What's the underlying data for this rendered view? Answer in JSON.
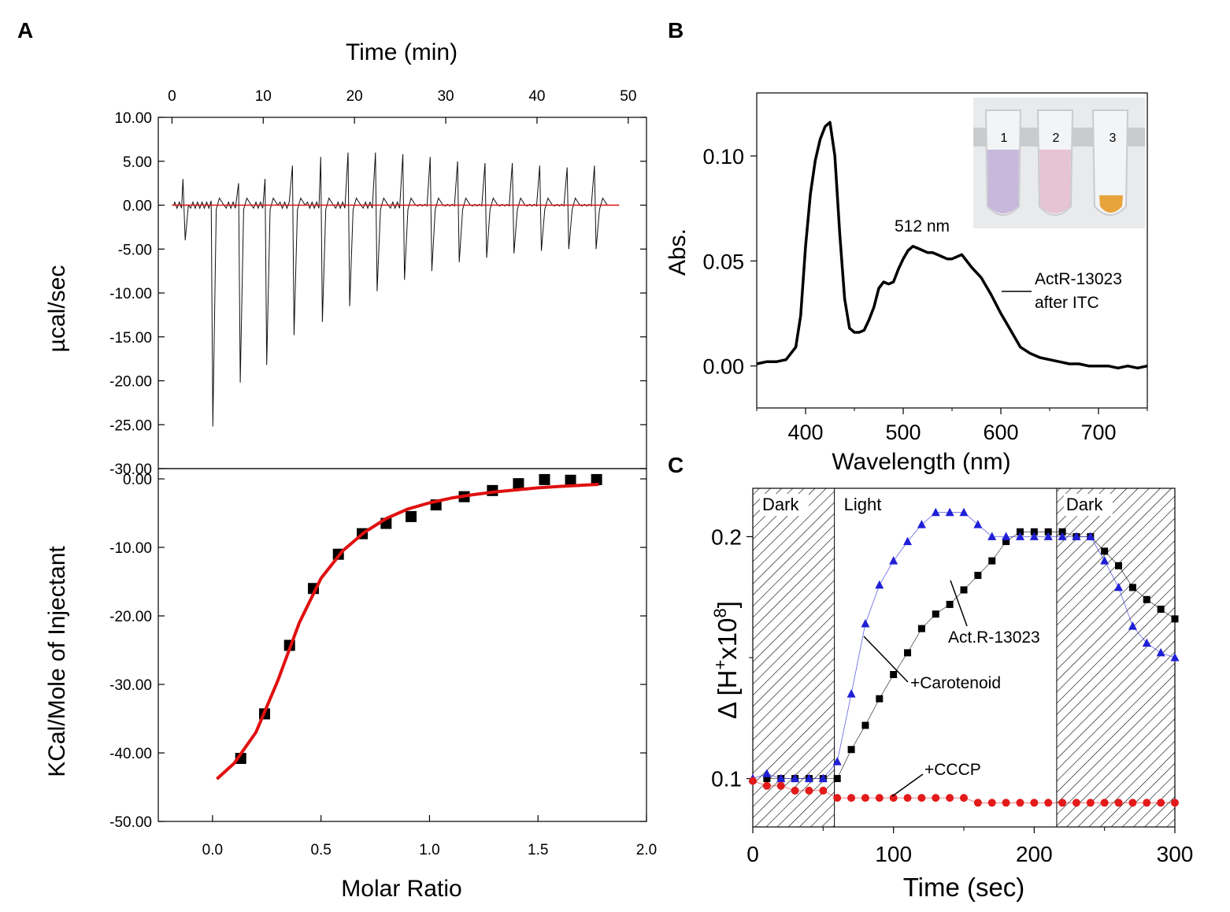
{
  "panels": {
    "A": {
      "label": "A"
    },
    "B": {
      "label": "B"
    },
    "C": {
      "label": "C"
    }
  },
  "chart_data": [
    {
      "id": "A-top",
      "type": "line",
      "title": "",
      "xlabel": "Time (min)",
      "ylabel": "µcal/sec",
      "xlim": [
        -1.5,
        52
      ],
      "ylim": [
        -30,
        10
      ],
      "x_ticks": [
        0,
        10,
        20,
        30,
        40,
        50
      ],
      "y_ticks": [
        10,
        5,
        0,
        -5,
        -10,
        -15,
        -20,
        -25,
        -30
      ],
      "y_tick_labels": [
        "10.00",
        "5.00",
        "0.00",
        "-5.00",
        "-10.00",
        "-15.00",
        "-20.00",
        "-25.00",
        "-30.00"
      ],
      "first_injection": {
        "time": 1.2,
        "up": 3.0,
        "down": -4.0
      },
      "injections": [
        {
          "time": 4.3,
          "up": 0.5,
          "down": -25.2
        },
        {
          "time": 7.3,
          "up": 2.5,
          "down": -20.2
        },
        {
          "time": 10.2,
          "up": 3.0,
          "down": -18.2
        },
        {
          "time": 13.2,
          "up": 4.5,
          "down": -14.8
        },
        {
          "time": 16.3,
          "up": 5.5,
          "down": -13.3
        },
        {
          "time": 19.3,
          "up": 6.0,
          "down": -11.5
        },
        {
          "time": 22.3,
          "up": 6.0,
          "down": -9.8
        },
        {
          "time": 25.3,
          "up": 5.8,
          "down": -8.5
        },
        {
          "time": 28.3,
          "up": 5.5,
          "down": -7.5
        },
        {
          "time": 31.3,
          "up": 5.0,
          "down": -6.5
        },
        {
          "time": 34.3,
          "up": 4.8,
          "down": -6.0
        },
        {
          "time": 37.3,
          "up": 4.8,
          "down": -5.5
        },
        {
          "time": 40.3,
          "up": 4.5,
          "down": -5.2
        },
        {
          "time": 43.3,
          "up": 4.3,
          "down": -5.0
        },
        {
          "time": 46.3,
          "up": 4.5,
          "down": -5.0
        }
      ],
      "baseline": {
        "start": 0,
        "end": 49,
        "value": 0
      }
    },
    {
      "id": "A-bottom",
      "type": "scatter",
      "xlabel": "Molar Ratio",
      "ylabel": "KCal/Mole of Injectant",
      "xlim": [
        -0.25,
        2.0
      ],
      "ylim": [
        -50,
        1.5
      ],
      "x_ticks": [
        0.0,
        0.5,
        1.0,
        1.5,
        2.0
      ],
      "x_tick_labels": [
        "0.0",
        "0.5",
        "1.0",
        "1.5",
        "2.0"
      ],
      "y_ticks": [
        0,
        -10,
        -20,
        -30,
        -40,
        -50
      ],
      "y_tick_labels": [
        "0.00",
        "-10.00",
        "-20.00",
        "-30.00",
        "-40.00",
        "-50.00"
      ],
      "points": {
        "x": [
          0.13,
          0.24,
          0.355,
          0.465,
          0.58,
          0.69,
          0.8,
          0.915,
          1.03,
          1.16,
          1.29,
          1.41,
          1.53,
          1.65,
          1.77
        ],
        "y": [
          -40.8,
          -34.3,
          -24.3,
          -16.0,
          -11.0,
          -8.0,
          -6.5,
          -5.5,
          -3.8,
          -2.6,
          -1.7,
          -0.7,
          -0.1,
          -0.2,
          -0.1
        ]
      },
      "fit": {
        "x": [
          0.02,
          0.1,
          0.2,
          0.3,
          0.4,
          0.5,
          0.6,
          0.7,
          0.8,
          0.9,
          1.0,
          1.1,
          1.2,
          1.3,
          1.4,
          1.5,
          1.6,
          1.78
        ],
        "y": [
          -43.8,
          -41.5,
          -37.0,
          -29.5,
          -21.0,
          -14.5,
          -10.5,
          -7.8,
          -5.8,
          -4.4,
          -3.5,
          -2.8,
          -2.3,
          -1.9,
          -1.6,
          -1.3,
          -1.1,
          -0.8
        ]
      }
    },
    {
      "id": "B",
      "type": "line",
      "xlabel": "Wavelength (nm)",
      "ylabel": "Abs.",
      "xlim": [
        350,
        750
      ],
      "ylim": [
        -0.02,
        0.13
      ],
      "x_ticks": [
        400,
        500,
        600,
        700
      ],
      "y_ticks": [
        0.0,
        0.05,
        0.1
      ],
      "y_tick_labels": [
        "0.00",
        "0.05",
        "0.10"
      ],
      "series": [
        {
          "name": "ActR-13023 after ITC",
          "x": [
            350,
            360,
            370,
            380,
            390,
            395,
            400,
            405,
            410,
            415,
            420,
            425,
            430,
            435,
            440,
            445,
            450,
            455,
            460,
            465,
            470,
            475,
            480,
            485,
            490,
            495,
            500,
            505,
            510,
            515,
            520,
            525,
            530,
            535,
            540,
            545,
            550,
            555,
            560,
            565,
            570,
            580,
            590,
            600,
            610,
            620,
            630,
            640,
            650,
            660,
            670,
            680,
            690,
            700,
            710,
            720,
            730,
            740,
            750
          ],
          "y": [
            0.001,
            0.002,
            0.002,
            0.003,
            0.009,
            0.024,
            0.057,
            0.082,
            0.098,
            0.108,
            0.114,
            0.116,
            0.1,
            0.063,
            0.032,
            0.018,
            0.016,
            0.016,
            0.017,
            0.022,
            0.028,
            0.037,
            0.04,
            0.039,
            0.04,
            0.046,
            0.051,
            0.055,
            0.057,
            0.056,
            0.055,
            0.054,
            0.054,
            0.053,
            0.052,
            0.051,
            0.051,
            0.052,
            0.053,
            0.05,
            0.047,
            0.042,
            0.034,
            0.025,
            0.017,
            0.009,
            0.006,
            0.004,
            0.003,
            0.002,
            0.001,
            0.001,
            0.0,
            0.0,
            0.0,
            -0.001,
            0.0,
            -0.001,
            0.0
          ]
        }
      ],
      "annotations": {
        "peak_label": "512 nm",
        "series_label_line1": "ActR-13023",
        "series_label_line2": "after ITC"
      },
      "inset": {
        "tube_labels": [
          "1",
          "2",
          "3"
        ],
        "tube_colors": [
          "#c8b8dc",
          "#e6c4d2",
          "#e8a43a"
        ]
      }
    },
    {
      "id": "C",
      "type": "line",
      "xlabel": "Time (sec)",
      "ylabel": "Δ [H+x10^8]",
      "ylabel_parts": {
        "prefix": "Δ [H",
        "sup1": "+",
        "mid": "x10",
        "sup2": "8",
        "suffix": "]"
      },
      "xlim": [
        0,
        300
      ],
      "ylim": [
        0.08,
        0.22
      ],
      "x_ticks": [
        0,
        100,
        200,
        300
      ],
      "y_ticks": [
        0.1,
        0.2
      ],
      "y_tick_labels": [
        "0.1",
        "0.2"
      ],
      "regions": [
        {
          "label": "Dark",
          "start": 0,
          "end": 58,
          "shaded": true
        },
        {
          "label": "Light",
          "start": 58,
          "end": 216,
          "shaded": false
        },
        {
          "label": "Dark",
          "start": 216,
          "end": 300,
          "shaded": true
        }
      ],
      "series": [
        {
          "name": "Act.R-13023",
          "color": "#000000",
          "marker": "square",
          "x": [
            10,
            20,
            30,
            40,
            50,
            60,
            70,
            80,
            90,
            100,
            110,
            120,
            130,
            140,
            150,
            160,
            170,
            180,
            190,
            200,
            210,
            220,
            230,
            240,
            250,
            260,
            270,
            280,
            290,
            300
          ],
          "y": [
            0.1,
            0.1,
            0.1,
            0.1,
            0.1,
            0.1,
            0.112,
            0.122,
            0.133,
            0.143,
            0.152,
            0.162,
            0.168,
            0.172,
            0.178,
            0.184,
            0.19,
            0.198,
            0.202,
            0.202,
            0.202,
            0.202,
            0.2,
            0.2,
            0.194,
            0.188,
            0.179,
            0.174,
            0.17,
            0.166
          ],
          "label": "Act.R-13023"
        },
        {
          "name": "+Carotenoid",
          "color": "#1f1fd6",
          "marker": "triangle",
          "x": [
            0,
            10,
            20,
            30,
            40,
            50,
            60,
            70,
            80,
            90,
            100,
            110,
            120,
            130,
            140,
            150,
            160,
            170,
            180,
            190,
            200,
            210,
            220,
            230,
            240,
            250,
            260,
            270,
            280,
            290,
            300
          ],
          "y": [
            0.1,
            0.102,
            0.1,
            0.1,
            0.1,
            0.1,
            0.107,
            0.135,
            0.164,
            0.18,
            0.19,
            0.198,
            0.205,
            0.21,
            0.21,
            0.21,
            0.205,
            0.2,
            0.2,
            0.2,
            0.2,
            0.2,
            0.2,
            0.2,
            0.2,
            0.19,
            0.179,
            0.163,
            0.156,
            0.152,
            0.15
          ],
          "label": "+Carotenoid"
        },
        {
          "name": "+CCCP",
          "color": "#e21a1a",
          "marker": "circle",
          "x": [
            0,
            10,
            20,
            30,
            40,
            50,
            60,
            70,
            80,
            90,
            100,
            110,
            120,
            130,
            140,
            150,
            160,
            170,
            180,
            190,
            200,
            210,
            220,
            230,
            240,
            250,
            260,
            270,
            280,
            290,
            300
          ],
          "y": [
            0.099,
            0.097,
            0.097,
            0.095,
            0.095,
            0.095,
            0.092,
            0.092,
            0.092,
            0.092,
            0.092,
            0.092,
            0.092,
            0.092,
            0.092,
            0.092,
            0.09,
            0.09,
            0.09,
            0.09,
            0.09,
            0.09,
            0.09,
            0.09,
            0.09,
            0.09,
            0.09,
            0.09,
            0.09,
            0.09,
            0.09
          ],
          "label": "+CCCP"
        }
      ]
    }
  ]
}
